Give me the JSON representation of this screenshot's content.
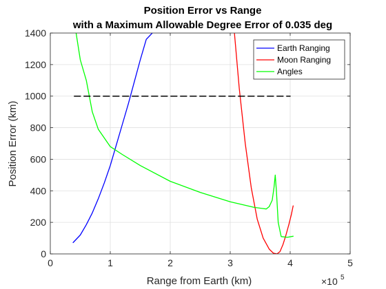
{
  "chart_data": {
    "type": "line",
    "title": [
      "Position Error vs Range",
      "with a Maximum Allowable Degree Error of 0.035 deg"
    ],
    "xlabel": "Range from Earth (km)",
    "ylabel": "Position Error (km)",
    "x_exponent_label": "×10",
    "x_exponent_power": "5",
    "x_exponent": 5,
    "xlim": [
      0,
      5
    ],
    "ylim": [
      0,
      1400
    ],
    "xticks": [
      0,
      1,
      2,
      3,
      4,
      5
    ],
    "yticks": [
      0,
      200,
      400,
      600,
      800,
      1000,
      1200,
      1400
    ],
    "grid": true,
    "legend_position": "top-right",
    "series": [
      {
        "name": "Earth Ranging",
        "color": "#0000ff",
        "x": [
          0.38,
          0.5,
          0.6,
          0.7,
          0.8,
          0.9,
          1.0,
          1.1,
          1.2,
          1.3,
          1.4,
          1.5,
          1.6,
          1.7
        ],
        "y": [
          72,
          120,
          185,
          260,
          350,
          450,
          560,
          690,
          820,
          950,
          1090,
          1230,
          1360,
          1400
        ]
      },
      {
        "name": "Moon Ranging",
        "color": "#ff0000",
        "x": [
          3.07,
          3.15,
          3.25,
          3.35,
          3.45,
          3.55,
          3.65,
          3.72,
          3.78,
          3.83,
          3.88,
          3.93,
          3.98,
          4.02,
          4.05
        ],
        "y": [
          1400,
          1050,
          700,
          420,
          220,
          100,
          30,
          5,
          0,
          15,
          60,
          120,
          190,
          250,
          305
        ]
      },
      {
        "name": "Angles",
        "color": "#00ff00",
        "x": [
          0.43,
          0.5,
          0.6,
          0.7,
          0.8,
          1.0,
          1.2,
          1.5,
          2.0,
          2.5,
          3.0,
          3.4,
          3.6,
          3.65,
          3.7,
          3.73,
          3.75,
          3.77,
          3.8,
          3.85,
          3.95,
          4.05
        ],
        "y": [
          1400,
          1230,
          1100,
          900,
          790,
          680,
          630,
          560,
          460,
          390,
          330,
          295,
          285,
          300,
          340,
          420,
          500,
          400,
          200,
          110,
          105,
          112
        ]
      },
      {
        "name": "",
        "color": "#000000",
        "dashed": true,
        "show_in_legend": false,
        "x": [
          0.4,
          4.0
        ],
        "y": [
          1000,
          1000
        ]
      }
    ]
  }
}
